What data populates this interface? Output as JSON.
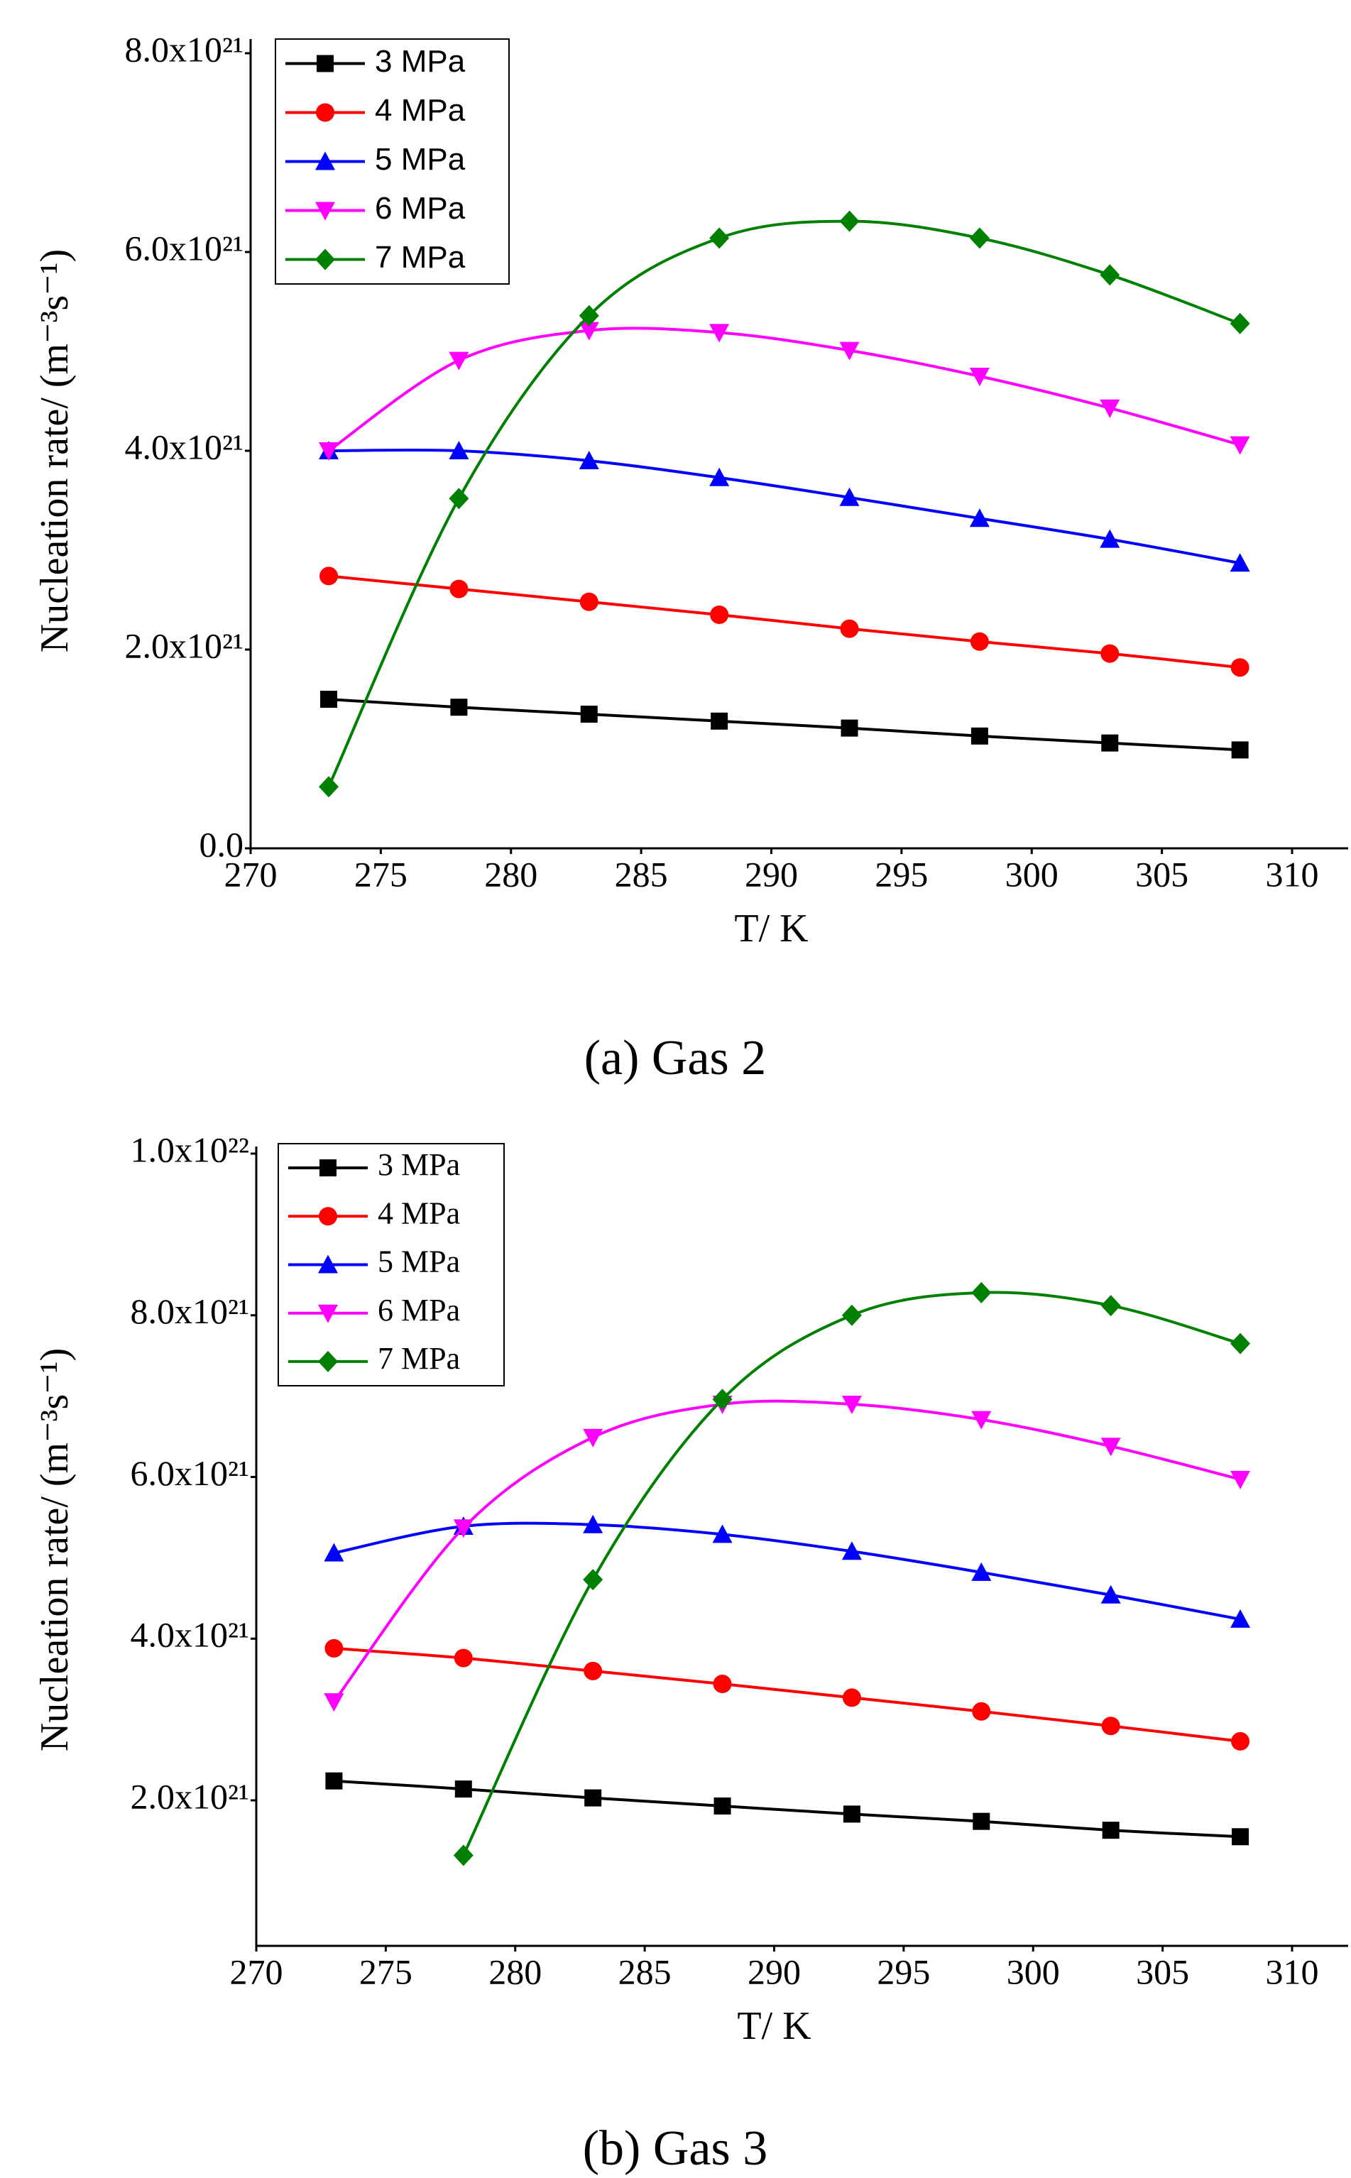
{
  "chart_data": [
    {
      "type": "line",
      "caption": "(a) Gas 2",
      "xlabel": "T/ K",
      "ylabel": "Nucleation rate/ (m⁻³s⁻¹)",
      "x": [
        273,
        278,
        283,
        288,
        293,
        298,
        303,
        308
      ],
      "xlim": [
        270,
        310
      ],
      "xticks": [
        270,
        275,
        280,
        285,
        290,
        295,
        300,
        305,
        310
      ],
      "ylim": [
        0,
        8e+21
      ],
      "yticks": [
        {
          "value": 0,
          "label": "0.0"
        },
        {
          "value": 2e+21,
          "label": "2.0x10²¹"
        },
        {
          "value": 4e+21,
          "label": "4.0x10²¹"
        },
        {
          "value": 6e+21,
          "label": "6.0x10²¹"
        },
        {
          "value": 8e+21,
          "label": "8.0x10²¹"
        }
      ],
      "legend": "upper left",
      "series": [
        {
          "name": "3 MPa",
          "color": "#000000",
          "marker": "square",
          "values": [
            1.5e+21,
            1.42e+21,
            1.35e+21,
            1.28e+21,
            1.21e+21,
            1.13e+21,
            1.06e+21,
            9.9e+20
          ]
        },
        {
          "name": "4 MPa",
          "color": "#ff0000",
          "marker": "circle",
          "values": [
            2.74e+21,
            2.61e+21,
            2.48e+21,
            2.35e+21,
            2.21e+21,
            2.08e+21,
            1.96e+21,
            1.82e+21
          ]
        },
        {
          "name": "5 MPa",
          "color": "#0000ff",
          "marker": "triangle-up",
          "values": [
            4e+21,
            4e+21,
            3.9e+21,
            3.73e+21,
            3.53e+21,
            3.32e+21,
            3.11e+21,
            2.87e+21
          ]
        },
        {
          "name": "6 MPa",
          "color": "#ff00ff",
          "marker": "triangle-down",
          "values": [
            4e+21,
            4.91e+21,
            5.21e+21,
            5.19e+21,
            5.01e+21,
            4.75e+21,
            4.43e+21,
            4.06e+21
          ]
        },
        {
          "name": "7 MPa",
          "color": "#008000",
          "marker": "diamond",
          "values": [
            6.2e+20,
            3.52e+21,
            5.36e+21,
            6.14e+21,
            6.31e+21,
            6.14e+21,
            5.77e+21,
            5.28e+21
          ]
        }
      ]
    },
    {
      "type": "line",
      "caption": "(b) Gas 3",
      "xlabel": "T/ K",
      "ylabel": "Nucleation rate/ (m⁻³s⁻¹)",
      "x": [
        273,
        278,
        283,
        288,
        293,
        298,
        303,
        308
      ],
      "xlim": [
        270,
        310
      ],
      "xticks": [
        270,
        275,
        280,
        285,
        290,
        295,
        300,
        305,
        310
      ],
      "ylim": [
        2e+20,
        1e+22
      ],
      "yticks": [
        {
          "value": 2e+21,
          "label": "2.0x10²¹"
        },
        {
          "value": 4e+21,
          "label": "4.0x10²¹"
        },
        {
          "value": 6e+21,
          "label": "6.0x10²¹"
        },
        {
          "value": 8e+21,
          "label": "8.0x10²¹"
        },
        {
          "value": 1e+22,
          "label": "1.0x10²²"
        }
      ],
      "legend": "upper left",
      "series": [
        {
          "name": "3 MPa",
          "color": "#000000",
          "marker": "square",
          "values": [
            2.24e+21,
            2.14e+21,
            2.03e+21,
            1.93e+21,
            1.83e+21,
            1.74e+21,
            1.63e+21,
            1.55e+21
          ]
        },
        {
          "name": "4 MPa",
          "color": "#ff0000",
          "marker": "circle",
          "values": [
            3.88e+21,
            3.76e+21,
            3.6e+21,
            3.44e+21,
            3.27e+21,
            3.1e+21,
            2.92e+21,
            2.73e+21
          ]
        },
        {
          "name": "5 MPa",
          "color": "#0000ff",
          "marker": "triangle-up",
          "values": [
            5.06e+21,
            5.39e+21,
            5.41e+21,
            5.29e+21,
            5.08e+21,
            4.82e+21,
            4.54e+21,
            4.24e+21
          ]
        },
        {
          "name": "6 MPa",
          "color": "#ff00ff",
          "marker": "triangle-down",
          "values": [
            3.22e+21,
            5.37e+21,
            6.49e+21,
            6.9e+21,
            6.9e+21,
            6.71e+21,
            6.38e+21,
            5.97e+21
          ]
        },
        {
          "name": "7 MPa",
          "color": "#008000",
          "marker": "diamond",
          "values": [
            null,
            1.32e+21,
            4.73e+21,
            6.96e+21,
            8e+21,
            8.28e+21,
            8.12e+21,
            7.65e+21
          ]
        }
      ]
    }
  ]
}
